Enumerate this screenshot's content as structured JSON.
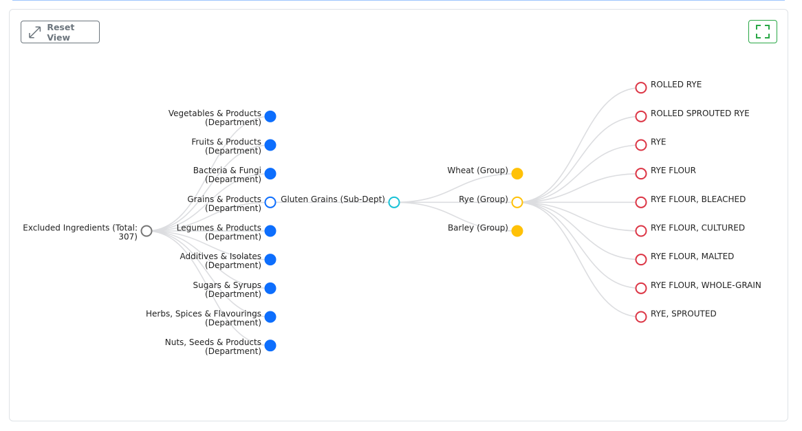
{
  "toolbar": {
    "reset_button": "Reset View"
  },
  "tree": {
    "label": [
      "Excluded Ingredients (Total:",
      "307)"
    ],
    "color": "#757575",
    "filled": false,
    "children": [
      {
        "label": [
          "Vegetables & Products",
          "(Department)"
        ],
        "color": "#0d6efd",
        "filled": true
      },
      {
        "label": [
          "Fruits & Products",
          "(Department)"
        ],
        "color": "#0d6efd",
        "filled": true
      },
      {
        "label": [
          "Bacteria & Fungi",
          "(Department)"
        ],
        "color": "#0d6efd",
        "filled": true
      },
      {
        "label": [
          "Grains & Products",
          "(Department)"
        ],
        "color": "#0d6efd",
        "filled": false,
        "children": [
          {
            "label": [
              "Gluten Grains (Sub-Dept)"
            ],
            "color": "#17c1d6",
            "filled": false,
            "children": [
              {
                "label": [
                  "Wheat (Group)"
                ],
                "color": "#ffc107",
                "filled": true
              },
              {
                "label": [
                  "Rye (Group)"
                ],
                "color": "#ffc107",
                "filled": false,
                "children": [
                  {
                    "label": [
                      "ROLLED RYE"
                    ],
                    "color": "#dc3545",
                    "filled": false
                  },
                  {
                    "label": [
                      "ROLLED SPROUTED RYE"
                    ],
                    "color": "#dc3545",
                    "filled": false
                  },
                  {
                    "label": [
                      "RYE"
                    ],
                    "color": "#dc3545",
                    "filled": false
                  },
                  {
                    "label": [
                      "RYE FLOUR"
                    ],
                    "color": "#dc3545",
                    "filled": false
                  },
                  {
                    "label": [
                      "RYE FLOUR, BLEACHED"
                    ],
                    "color": "#dc3545",
                    "filled": false
                  },
                  {
                    "label": [
                      "RYE FLOUR, CULTURED"
                    ],
                    "color": "#dc3545",
                    "filled": false
                  },
                  {
                    "label": [
                      "RYE FLOUR, MALTED"
                    ],
                    "color": "#dc3545",
                    "filled": false
                  },
                  {
                    "label": [
                      "RYE FLOUR, WHOLE-GRAIN"
                    ],
                    "color": "#dc3545",
                    "filled": false
                  },
                  {
                    "label": [
                      "RYE, SPROUTED"
                    ],
                    "color": "#dc3545",
                    "filled": false
                  }
                ]
              },
              {
                "label": [
                  "Barley (Group)"
                ],
                "color": "#ffc107",
                "filled": true
              }
            ]
          }
        ]
      },
      {
        "label": [
          "Legumes & Products",
          "(Department)"
        ],
        "color": "#0d6efd",
        "filled": true
      },
      {
        "label": [
          "Additives & Isolates",
          "(Department)"
        ],
        "color": "#0d6efd",
        "filled": true
      },
      {
        "label": [
          "Sugars & Syrups",
          "(Department)"
        ],
        "color": "#0d6efd",
        "filled": true
      },
      {
        "label": [
          "Herbs, Spices & Flavourings",
          "(Department)"
        ],
        "color": "#0d6efd",
        "filled": true
      },
      {
        "label": [
          "Nuts, Seeds & Products",
          "(Department)"
        ],
        "color": "#0d6efd",
        "filled": true
      }
    ]
  }
}
